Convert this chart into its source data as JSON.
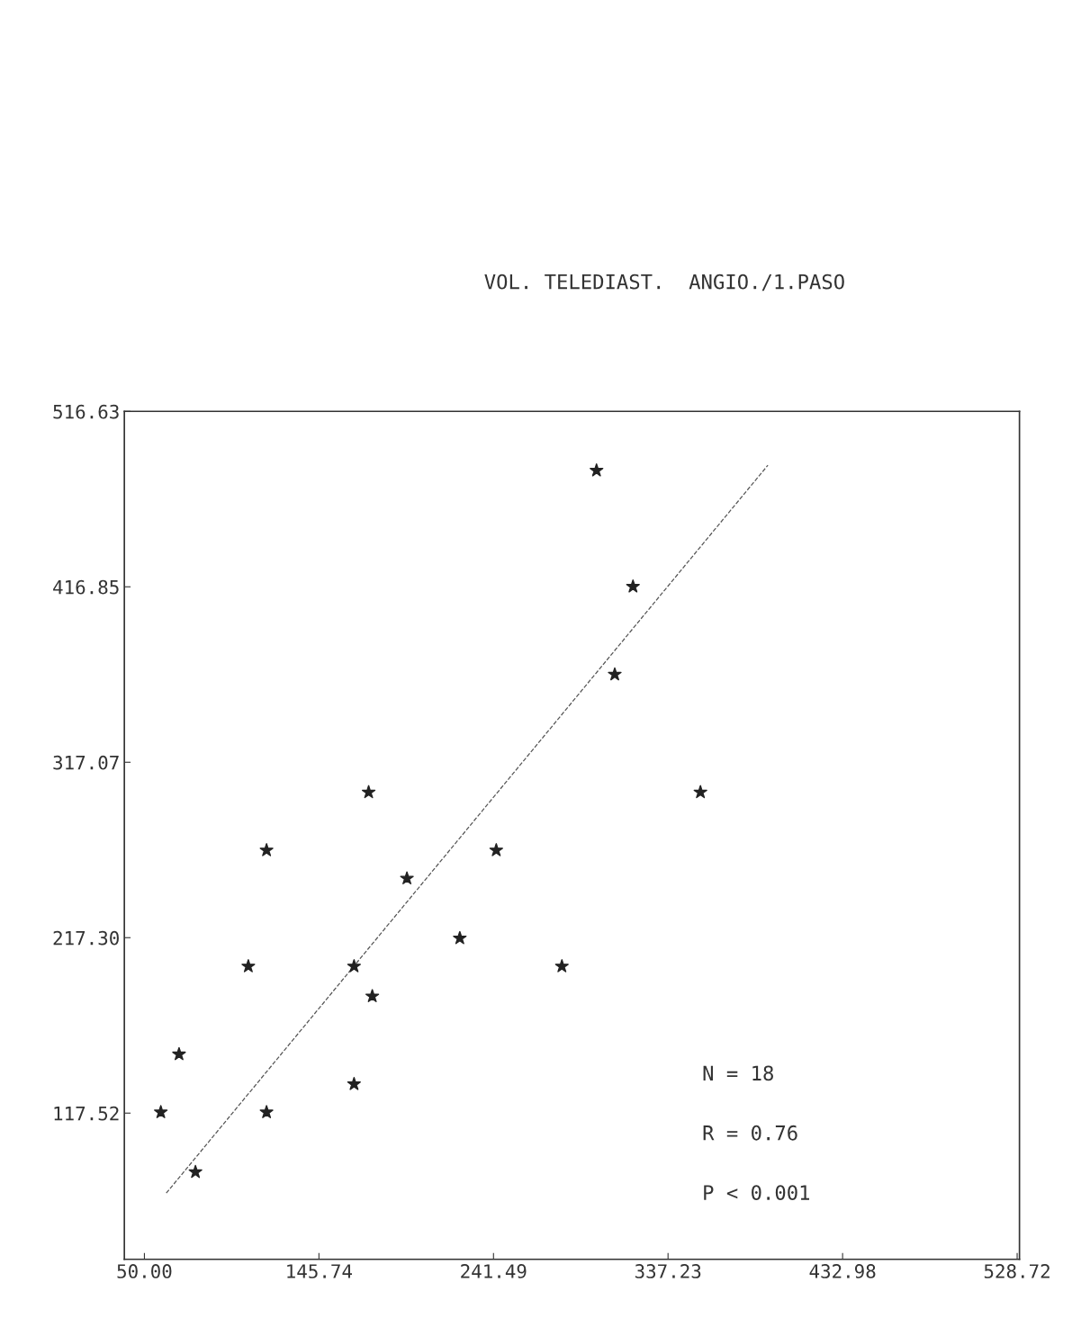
{
  "chart_data": {
    "type": "scatter",
    "title": "VOL. TELEDIAST.  ANGIO./1.PASO",
    "series": [
      {
        "color": "#222222",
        "marker": "star",
        "x": [
          298,
          318,
          308,
          355,
          173,
          117,
          194,
          243,
          223,
          107,
          165,
          279,
          175,
          69,
          165,
          59,
          117,
          78
        ],
        "values": [
          483,
          417,
          367,
          300,
          300,
          267,
          251,
          267,
          217,
          201,
          201,
          201,
          184,
          151,
          134,
          118,
          118,
          84
        ]
      },
      {
        "type": "line",
        "color": "#555555",
        "line_style": "dashed",
        "x": [
          62,
          392
        ],
        "values": [
          72,
          486
        ]
      }
    ],
    "xlim": [
      39,
      530
    ],
    "ylim": [
      34.36,
      516.63
    ],
    "xticks": [
      {
        "value": 50,
        "label": "50.00"
      },
      145.74,
      241.49,
      337.23,
      432.98,
      528.72
    ],
    "yticks": [
      117.52,
      {
        "value": 217.3,
        "label": "217.30"
      },
      317.07,
      416.85,
      516.63
    ],
    "grid": false,
    "annotations": [
      {
        "text": "N = 18"
      },
      {
        "text": "R = 0.76"
      },
      {
        "text": "P < 0.001"
      }
    ]
  }
}
